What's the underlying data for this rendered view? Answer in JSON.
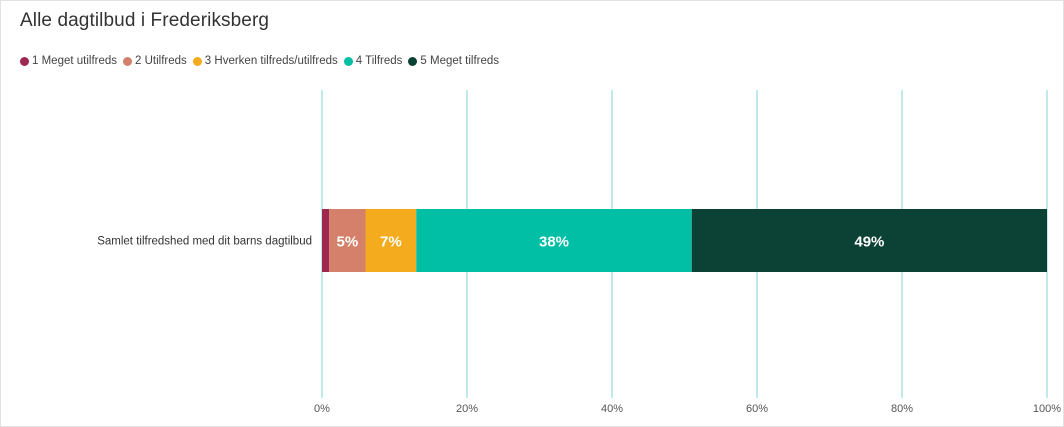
{
  "chart_data": {
    "type": "bar",
    "orientation": "horizontal",
    "stacked": true,
    "title": "Alle dagtilbud i Frederiksberg",
    "categories": [
      "Samlet tilfredshed med dit barns dagtilbud"
    ],
    "series": [
      {
        "name": "1 Meget utilfreds",
        "values": [
          1
        ],
        "color": "#a0284e",
        "label": ""
      },
      {
        "name": "2 Utilfreds",
        "values": [
          5
        ],
        "color": "#d4806a",
        "label": "5%"
      },
      {
        "name": "3 Hverken tilfreds/utilfreds",
        "values": [
          7
        ],
        "color": "#f5ab1e",
        "label": "7%"
      },
      {
        "name": "4 Tilfreds",
        "values": [
          38
        ],
        "color": "#00bfa5",
        "label": "38%"
      },
      {
        "name": "5 Meget tilfreds",
        "values": [
          49
        ],
        "color": "#0c4136",
        "label": "49%"
      }
    ],
    "xlim": [
      0,
      100
    ],
    "xticks": [
      "0%",
      "20%",
      "40%",
      "60%",
      "80%",
      "100%"
    ],
    "xtick_values": [
      0,
      20,
      40,
      60,
      80,
      100
    ],
    "grid": true,
    "grid_color": "#7fd3d6",
    "legend_placement": "top-left"
  }
}
